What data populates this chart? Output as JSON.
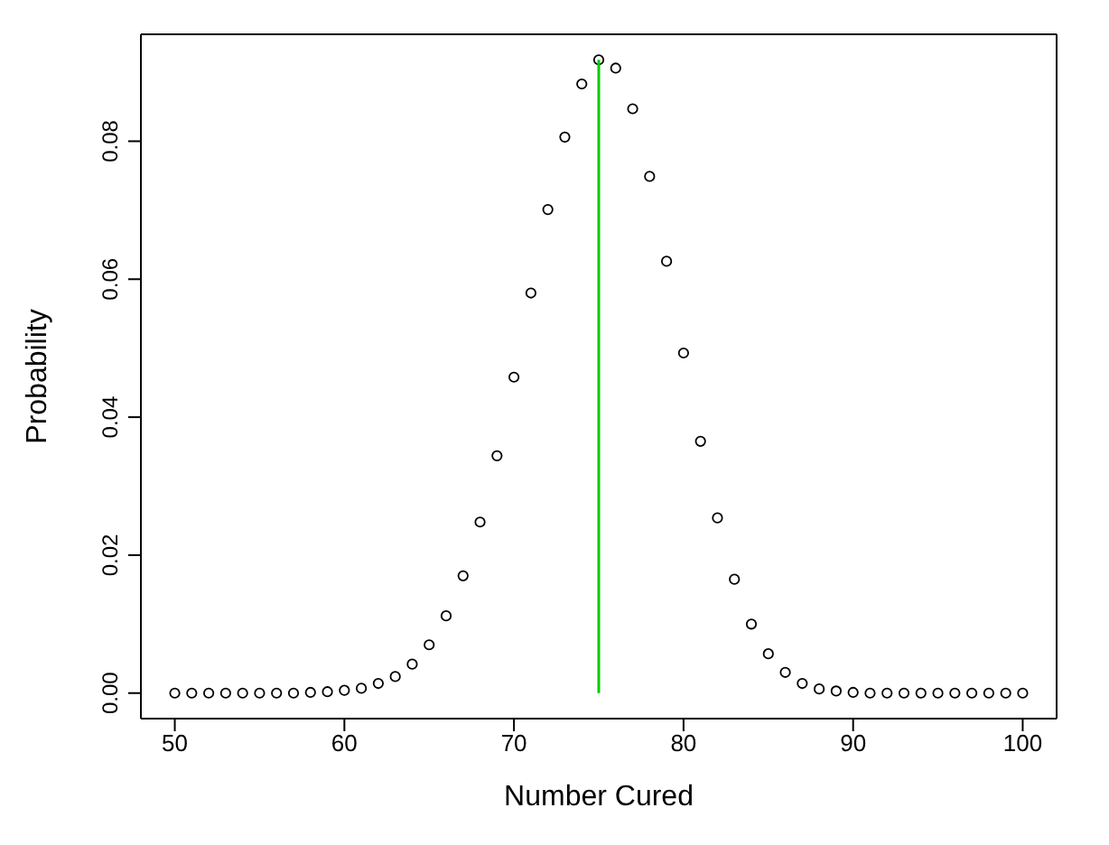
{
  "chart_data": {
    "type": "scatter",
    "xlabel": "Number Cured",
    "ylabel": "Probability",
    "xlim": [
      48,
      102
    ],
    "ylim": [
      -0.0037,
      0.0955
    ],
    "xticks": [
      50,
      60,
      70,
      80,
      90,
      100
    ],
    "yticks": [
      {
        "value": 0,
        "label": "0.00"
      },
      {
        "value": 0.02,
        "label": "0.02"
      },
      {
        "value": 0.04,
        "label": "0.04"
      },
      {
        "value": 0.06,
        "label": "0.06"
      },
      {
        "value": 0.08,
        "label": "0.08"
      }
    ],
    "series": [
      {
        "color": "#000000",
        "marker": "circle",
        "x": [
          50,
          51,
          52,
          53,
          54,
          55,
          56,
          57,
          58,
          59,
          60,
          61,
          62,
          63,
          64,
          65,
          66,
          67,
          68,
          69,
          70,
          71,
          72,
          73,
          74,
          75,
          76,
          77,
          78,
          79,
          80,
          81,
          82,
          83,
          84,
          85,
          86,
          87,
          88,
          89,
          90,
          91,
          92,
          93,
          94,
          95,
          96,
          97,
          98,
          99,
          100
        ],
        "values": [
          0,
          0,
          0,
          0,
          0,
          0,
          0,
          0,
          0.0001,
          0.0002,
          0.0004,
          0.0007,
          0.0014,
          0.0024,
          0.0042,
          0.007,
          0.0112,
          0.017,
          0.0248,
          0.0344,
          0.0458,
          0.058,
          0.0701,
          0.0806,
          0.0883,
          0.0918,
          0.0906,
          0.0847,
          0.0749,
          0.0626,
          0.0493,
          0.0365,
          0.0254,
          0.0165,
          0.01,
          0.0057,
          0.003,
          0.0014,
          0.0006,
          0.0003,
          0.0001,
          0,
          0,
          0,
          0,
          0,
          0,
          0,
          0,
          0,
          0
        ]
      },
      {
        "type": "line",
        "color": "#00cc00",
        "x": [
          75,
          75
        ],
        "values": [
          0,
          0.0918
        ]
      }
    ]
  }
}
